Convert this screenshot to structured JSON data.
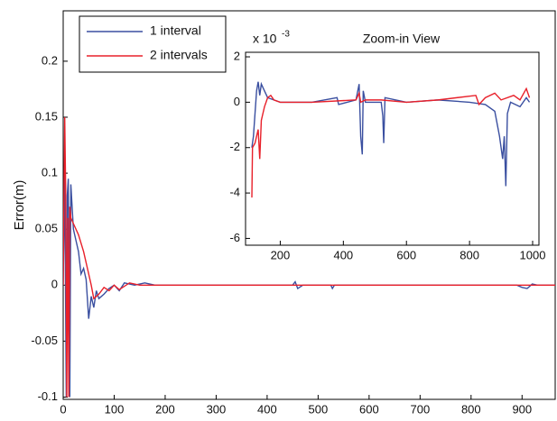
{
  "chart_data": [
    {
      "type": "line",
      "ylabel": "Error(m)",
      "xlim": [
        0,
        965
      ],
      "ylim": [
        -0.102,
        0.245
      ],
      "xticks": [
        0,
        100,
        200,
        300,
        400,
        500,
        600,
        700,
        800,
        900
      ],
      "yticks": [
        -0.1,
        -0.05,
        0,
        0.05,
        0.1,
        0.15,
        0.2
      ],
      "grid": false,
      "legend": "upper left",
      "series": [
        {
          "name": "1 interval",
          "color": "#3a4fa0",
          "x": [
            0,
            3,
            6,
            8,
            10,
            13,
            15,
            20,
            25,
            30,
            35,
            40,
            45,
            50,
            55,
            60,
            65,
            70,
            80,
            90,
            100,
            110,
            120,
            140,
            160,
            180,
            450,
            455,
            460,
            470,
            525,
            528,
            532,
            890,
            900,
            910,
            920,
            930,
            965
          ],
          "values": [
            0,
            0.1,
            -0.1,
            0.08,
            0.095,
            -0.1,
            0.09,
            0.05,
            0.04,
            0.03,
            0.01,
            0.015,
            0.005,
            -0.03,
            -0.01,
            -0.02,
            -0.005,
            -0.012,
            -0.008,
            -0.003,
            0,
            -0.005,
            0.002,
            0,
            0.002,
            0,
            0,
            0.003,
            -0.003,
            0,
            0,
            -0.003,
            0,
            0,
            -0.002,
            -0.003,
            0.001,
            0,
            0
          ]
        },
        {
          "name": "2 intervals",
          "color": "#e8202a",
          "x": [
            0,
            3,
            5,
            7,
            9,
            11,
            13,
            15,
            20,
            30,
            40,
            50,
            55,
            60,
            70,
            80,
            90,
            100,
            110,
            130,
            150,
            965
          ],
          "values": [
            0,
            0.15,
            0.08,
            -0.1,
            0.06,
            -0.1,
            0.07,
            0.06,
            0.055,
            0.045,
            0.03,
            0.01,
            0,
            -0.012,
            -0.008,
            -0.002,
            -0.005,
            0,
            -0.004,
            0.002,
            0,
            0
          ]
        }
      ]
    },
    {
      "type": "line",
      "title": "Zoom-in View",
      "scale_label": "x 10",
      "scale_exponent": "-3",
      "xlim": [
        90,
        1020
      ],
      "ylim": [
        -6.3,
        2.2
      ],
      "xticks": [
        200,
        400,
        600,
        800,
        1000
      ],
      "yticks": [
        -6,
        -4,
        -2,
        0,
        2
      ],
      "grid": false,
      "series": [
        {
          "color": "#3a4fa0",
          "x": [
            110,
            115,
            120,
            125,
            130,
            135,
            140,
            150,
            160,
            180,
            200,
            300,
            380,
            385,
            440,
            450,
            455,
            460,
            463,
            470,
            520,
            525,
            528,
            532,
            600,
            700,
            800,
            850,
            880,
            895,
            905,
            910,
            915,
            920,
            930,
            960,
            980,
            990
          ],
          "values": [
            -2,
            -1.5,
            -0.5,
            0.5,
            0.9,
            0.3,
            0.8,
            0.5,
            0.2,
            0.1,
            0,
            0,
            0.2,
            -0.1,
            0.1,
            0.8,
            -1.5,
            -2.3,
            0.5,
            0,
            0,
            -0.6,
            -1.8,
            0.2,
            0,
            0.1,
            0,
            -0.1,
            -0.4,
            -1.5,
            -2.5,
            -1.5,
            -3.7,
            -0.5,
            0,
            -0.2,
            0.2,
            0
          ]
        },
        {
          "color": "#e8202a",
          "x": [
            110,
            112,
            120,
            130,
            135,
            140,
            150,
            160,
            170,
            180,
            200,
            300,
            440,
            450,
            455,
            470,
            520,
            600,
            700,
            820,
            830,
            850,
            880,
            900,
            940,
            960,
            980,
            990
          ],
          "values": [
            -4.2,
            -2,
            -1.8,
            -1.2,
            -2.5,
            -0.8,
            -0.2,
            0.2,
            0.3,
            0.1,
            0,
            0,
            0.1,
            0.4,
            0,
            0.1,
            0.1,
            0,
            0.1,
            0.3,
            -0.1,
            0.2,
            0.4,
            0.1,
            0.3,
            0.1,
            0.6,
            0.2
          ]
        }
      ]
    }
  ]
}
